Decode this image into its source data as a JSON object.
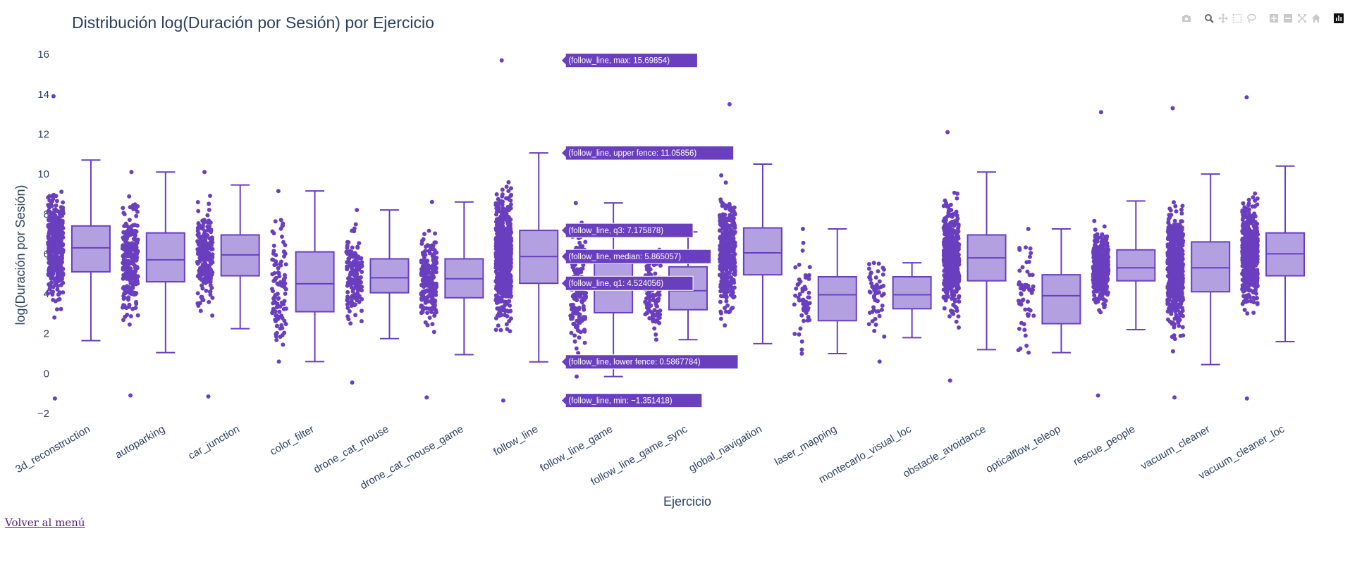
{
  "back_link": "Volver al menú",
  "modebar": [
    "camera-icon",
    "zoom-icon",
    "pan-icon",
    "box-select-icon",
    "lasso-select-icon",
    "zoom-in-icon",
    "zoom-out-icon",
    "autoscale-icon",
    "reset-axes-icon",
    "plotly-logo-icon"
  ],
  "chart_data": {
    "type": "box",
    "title": "Distribución log(Duración por Sesión) por Ejercicio",
    "xlabel": "Ejercicio",
    "ylabel": "log(Duración por Sesión)",
    "ylim": [
      -2,
      16.5
    ],
    "yticks": [
      -2,
      0,
      2,
      4,
      6,
      8,
      10,
      12,
      14,
      16
    ],
    "grid": false,
    "color": "#6a3fbf",
    "fill": "#b3a0e0",
    "categories": [
      "3d_reconstruction",
      "autoparking",
      "car_junction",
      "color_filter",
      "drone_cat_mouse",
      "drone_cat_mouse_game",
      "follow_line",
      "follow_line_game",
      "follow_line_game_sync",
      "global_navigation",
      "laser_mapping",
      "montecarlo_visual_loc",
      "obstacle_avoidance",
      "opticalflow_teleop",
      "rescue_people",
      "vacuum_cleaner",
      "vacuum_cleaner_loc"
    ],
    "boxes": [
      {
        "lowerfence": 1.65,
        "q1": 5.1,
        "median": 6.3,
        "q3": 7.4,
        "upperfence": 10.7,
        "min": -1.25,
        "max": 13.9,
        "density": 8
      },
      {
        "lowerfence": 1.05,
        "q1": 4.6,
        "median": 5.7,
        "q3": 7.05,
        "upperfence": 10.1,
        "min": -1.1,
        "max": 10.1,
        "density": 5
      },
      {
        "lowerfence": 2.25,
        "q1": 4.9,
        "median": 5.95,
        "q3": 6.95,
        "upperfence": 9.45,
        "min": -1.15,
        "max": 10.1,
        "density": 4
      },
      {
        "lowerfence": 0.6,
        "q1": 3.1,
        "median": 4.5,
        "q3": 6.1,
        "upperfence": 9.15,
        "min": 0.6,
        "max": 9.15,
        "density": 2
      },
      {
        "lowerfence": 1.75,
        "q1": 4.05,
        "median": 4.8,
        "q3": 5.75,
        "upperfence": 8.2,
        "min": -0.45,
        "max": 8.2,
        "density": 3
      },
      {
        "lowerfence": 0.95,
        "q1": 3.8,
        "median": 4.75,
        "q3": 5.75,
        "upperfence": 8.6,
        "min": -1.2,
        "max": 8.6,
        "density": 4
      },
      {
        "lowerfence": 0.5867784,
        "q1": 4.524056,
        "median": 5.865057,
        "q3": 7.175878,
        "upperfence": 11.05856,
        "min": -1.351418,
        "max": 15.69854,
        "density": 12
      },
      {
        "lowerfence": -0.15,
        "q1": 3.05,
        "median": 4.3,
        "q3": 5.6,
        "upperfence": 8.55,
        "min": -0.15,
        "max": 8.55,
        "density": 3
      },
      {
        "lowerfence": 1.7,
        "q1": 3.2,
        "median": 4.15,
        "q3": 5.35,
        "upperfence": 7.1,
        "min": 1.7,
        "max": 7.1,
        "density": 2
      },
      {
        "lowerfence": 1.5,
        "q1": 4.95,
        "median": 6.05,
        "q3": 7.3,
        "upperfence": 10.5,
        "min": 0.6,
        "max": 13.5,
        "density": 7
      },
      {
        "lowerfence": 1.0,
        "q1": 2.65,
        "median": 3.95,
        "q3": 4.85,
        "upperfence": 7.25,
        "min": 1.0,
        "max": 7.25,
        "density": 1
      },
      {
        "lowerfence": 1.8,
        "q1": 3.25,
        "median": 3.95,
        "q3": 4.85,
        "upperfence": 5.55,
        "min": 0.6,
        "max": 5.55,
        "density": 1
      },
      {
        "lowerfence": 1.2,
        "q1": 4.65,
        "median": 5.8,
        "q3": 6.95,
        "upperfence": 10.1,
        "min": -0.35,
        "max": 12.1,
        "density": 9
      },
      {
        "lowerfence": 1.05,
        "q1": 2.5,
        "median": 3.9,
        "q3": 4.95,
        "upperfence": 7.25,
        "min": 1.05,
        "max": 7.25,
        "density": 1
      },
      {
        "lowerfence": 2.2,
        "q1": 4.65,
        "median": 5.3,
        "q3": 6.2,
        "upperfence": 8.65,
        "min": -1.1,
        "max": 13.1,
        "density": 7
      },
      {
        "lowerfence": 0.45,
        "q1": 4.1,
        "median": 5.3,
        "q3": 6.6,
        "upperfence": 10.0,
        "min": -1.2,
        "max": 13.3,
        "density": 11
      },
      {
        "lowerfence": 1.6,
        "q1": 4.9,
        "median": 6.0,
        "q3": 7.05,
        "upperfence": 10.4,
        "min": -1.25,
        "max": 13.85,
        "density": 10
      }
    ],
    "hover": {
      "category_index": 6,
      "labels": [
        {
          "stat": "max",
          "text": "(follow_line, max: 15.69854)"
        },
        {
          "stat": "upperfence",
          "text": "(follow_line, upper fence: 11.05856)"
        },
        {
          "stat": "q3",
          "text": "(follow_line, q3: 7.175878)"
        },
        {
          "stat": "median",
          "text": "(follow_line, median: 5.865057)"
        },
        {
          "stat": "q1",
          "text": "(follow_line, q1: 4.524056)"
        },
        {
          "stat": "lowerfence",
          "text": "(follow_line, lower fence: 0.5867784)"
        },
        {
          "stat": "min",
          "text": "(follow_line, min: −1.351418)"
        }
      ]
    }
  }
}
